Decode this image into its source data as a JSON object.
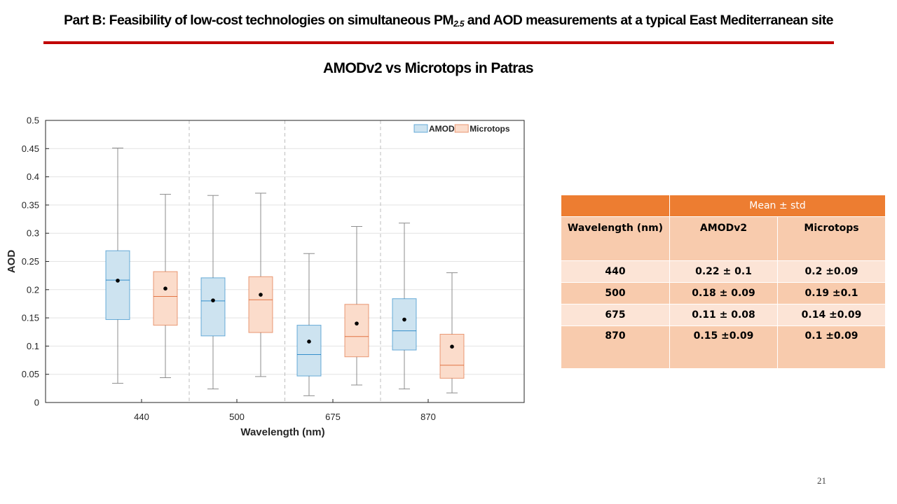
{
  "slide": {
    "title_prefix": "Part B: Feasibility of low-cost technologies on simultaneous PM",
    "title_sub": "2.5",
    "title_suffix": " and AOD measurements at a typical East Mediterranean site",
    "subtitle": "AMODv2 vs Microtops in Patras",
    "page_number": "21",
    "accent_color": "#c00000"
  },
  "chart_data": {
    "type": "box",
    "xlabel": "Wavelength (nm)",
    "ylabel": "AOD",
    "ylim": [
      0,
      0.5
    ],
    "yticks": [
      0,
      0.05,
      0.1,
      0.15,
      0.2,
      0.25,
      0.3,
      0.35,
      0.4,
      0.45,
      0.5
    ],
    "grid": true,
    "legend_position": "top-right",
    "categories": [
      "440",
      "500",
      "675",
      "870"
    ],
    "series": [
      {
        "name": "AMOD",
        "color": "#0072bd",
        "fill": "#cde3f0",
        "boxes": [
          {
            "min": 0.034,
            "q1": 0.147,
            "median": 0.217,
            "q3": 0.269,
            "max": 0.451,
            "mean": 0.216
          },
          {
            "min": 0.024,
            "q1": 0.118,
            "median": 0.18,
            "q3": 0.221,
            "max": 0.367,
            "mean": 0.181
          },
          {
            "min": 0.012,
            "q1": 0.047,
            "median": 0.085,
            "q3": 0.137,
            "max": 0.264,
            "mean": 0.108
          },
          {
            "min": 0.024,
            "q1": 0.093,
            "median": 0.127,
            "q3": 0.184,
            "max": 0.318,
            "mean": 0.147
          }
        ]
      },
      {
        "name": "Microtops",
        "color": "#d95319",
        "fill": "#fbdccb",
        "boxes": [
          {
            "min": 0.044,
            "q1": 0.137,
            "median": 0.188,
            "q3": 0.232,
            "max": 0.369,
            "mean": 0.202
          },
          {
            "min": 0.046,
            "q1": 0.124,
            "median": 0.182,
            "q3": 0.223,
            "max": 0.371,
            "mean": 0.191
          },
          {
            "min": 0.031,
            "q1": 0.081,
            "median": 0.117,
            "q3": 0.174,
            "max": 0.312,
            "mean": 0.14
          },
          {
            "min": 0.017,
            "q1": 0.043,
            "median": 0.066,
            "q3": 0.121,
            "max": 0.23,
            "mean": 0.099
          }
        ]
      }
    ]
  },
  "table": {
    "group_header": "Mean ± std",
    "columns": [
      "Wavelength (nm)",
      "AMODv2",
      "Microtops"
    ],
    "rows": [
      [
        "440",
        "0.22 ± 0.1",
        "0.2 ±0.09"
      ],
      [
        "500",
        "0.18 ± 0.09",
        "0.19 ±0.1"
      ],
      [
        "675",
        "0.11 ± 0.08",
        "0.14 ±0.09"
      ],
      [
        "870",
        "0.15 ±0.09",
        "0.1 ±0.09"
      ]
    ]
  }
}
